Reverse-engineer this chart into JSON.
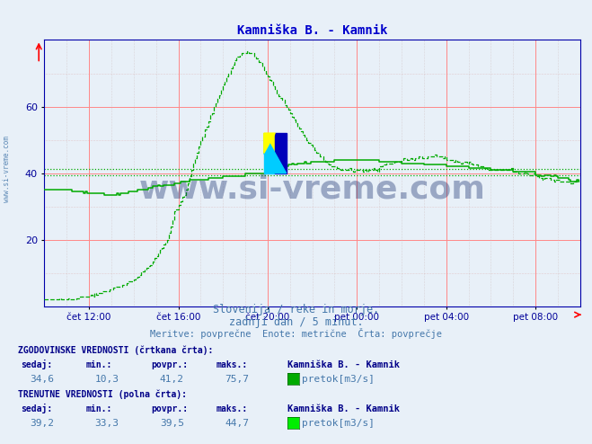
{
  "title": "Kamniška B. - Kamnik",
  "title_color": "#0000cc",
  "bg_color": "#e8f0f8",
  "plot_bg_color": "#e8f0f8",
  "ylim": [
    0,
    80
  ],
  "yticks": [
    20,
    40,
    60
  ],
  "xlabel_color": "#000099",
  "xtick_labels": [
    "čet 12:00",
    "čet 16:00",
    "čet 20:00",
    "pet 00:00",
    "pet 04:00",
    "pet 08:00"
  ],
  "xtick_positions": [
    120,
    360,
    600,
    840,
    1080,
    1320
  ],
  "total_minutes": 1440,
  "xstart": 0,
  "line_color": "#00aa00",
  "avg_line_hist": 41.2,
  "avg_line_curr": 39.5,
  "watermark_text": "www.si-vreme.com",
  "watermark_color": "#1a3070",
  "watermark_alpha": 0.38,
  "subtitle1": "Slovenija / reke in morje.",
  "subtitle2": "zadnji dan / 5 minut.",
  "subtitle3": "Meritve: povprečne  Enote: metrične  Črta: povprečje",
  "subtitle_color": "#4477aa",
  "footer_bold_color": "#000088",
  "footer_val_color": "#4477aa",
  "station_name": "Kamniška B. - Kamnik",
  "hist_sedaj": "34,6",
  "hist_min": "10,3",
  "hist_povpr": "41,2",
  "hist_maks": "75,7",
  "curr_sedaj": "39,2",
  "curr_min": "33,3",
  "curr_povpr": "39,5",
  "curr_maks": "44,7"
}
